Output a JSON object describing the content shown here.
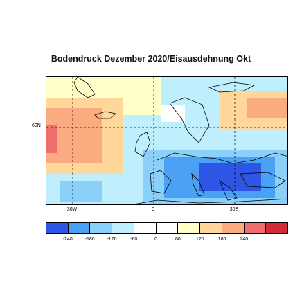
{
  "title": "Bodendruck Dezember 2020/Eisausdehnung Okt",
  "map": {
    "lat_labels": [
      "60N"
    ],
    "lon_labels": [
      "30W",
      "0",
      "30E"
    ]
  },
  "colorbar": {
    "tick_labels": [
      "-240",
      "-180",
      "-120",
      "-60",
      "0",
      "60",
      "120",
      "180",
      "240"
    ],
    "colors": [
      "#2d55e6",
      "#4aa0f5",
      "#8ad0f8",
      "#bfeefd",
      "#ffffff",
      "#ffffff",
      "#ffffc8",
      "#ffd79a",
      "#fbab80",
      "#ef6e6e",
      "#d42b3a"
    ]
  },
  "chart_data": {
    "type": "heatmap",
    "title": "Bodendruck Dezember 2020/Eisausdehnung Okt",
    "levels": [
      -240,
      -180,
      -120,
      -60,
      0,
      60,
      120,
      180,
      240
    ],
    "x_ticks": [
      "30W",
      "0",
      "30E"
    ],
    "y_ticks": [
      "60N"
    ],
    "grid": true
  }
}
